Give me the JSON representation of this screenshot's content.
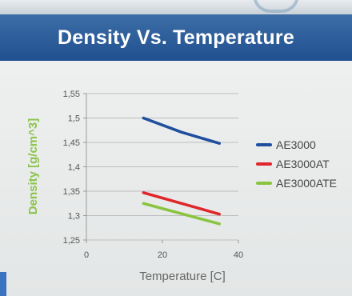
{
  "chart_data": {
    "type": "line",
    "title": "Density Vs. Temperature",
    "xlabel": "Temperature [C]",
    "ylabel": "Density [g/cm^3]",
    "xlim": [
      0,
      40
    ],
    "ylim": [
      1.25,
      1.55
    ],
    "x_ticks": [
      "0",
      "20",
      "40"
    ],
    "y_ticks": [
      "1,25",
      "1,3",
      "1,35",
      "1,4",
      "1,45",
      "1,5",
      "1,55"
    ],
    "y_tick_values": [
      1.25,
      1.3,
      1.35,
      1.4,
      1.45,
      1.5,
      1.55
    ],
    "x_tick_values": [
      0,
      20,
      40
    ],
    "grid": true,
    "legend_position": "right",
    "series": [
      {
        "name": "AE3000",
        "color": "#1f4e9e",
        "x": [
          15,
          25,
          35
        ],
        "y": [
          1.5,
          1.471,
          1.448
        ]
      },
      {
        "name": "AE3000AT",
        "color": "#e0262b",
        "x": [
          15,
          35
        ],
        "y": [
          1.347,
          1.303
        ]
      },
      {
        "name": "AE3000ATE",
        "color": "#8ac43f",
        "x": [
          15,
          35
        ],
        "y": [
          1.325,
          1.283
        ]
      }
    ]
  }
}
